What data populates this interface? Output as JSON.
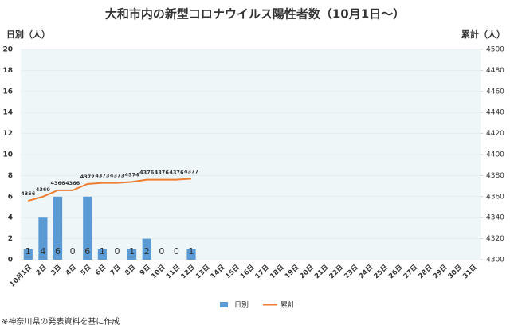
{
  "chart_data": {
    "type": "bar",
    "title": "大和市内の新型コロナウイルス陽性者数（10月1日～）",
    "y_label": "日別（人）",
    "y2_label": "累計（人）",
    "note": "※神奈川県の発表資料を基に作成",
    "categories": [
      "10月1日",
      "2日",
      "3日",
      "4日",
      "5日",
      "6日",
      "7日",
      "8日",
      "9日",
      "10日",
      "11日",
      "12日",
      "13日",
      "14日",
      "15日",
      "16日",
      "17日",
      "18日",
      "19日",
      "20日",
      "21日",
      "22日",
      "23日",
      "24日",
      "25日",
      "26日",
      "27日",
      "28日",
      "29日",
      "30日",
      "31日"
    ],
    "series": [
      {
        "name": "日別",
        "color": "#5b9bd5",
        "values": [
          1,
          4,
          6,
          0,
          6,
          1,
          0,
          1,
          2,
          0,
          0,
          1,
          null,
          null,
          null,
          null,
          null,
          null,
          null,
          null,
          null,
          null,
          null,
          null,
          null,
          null,
          null,
          null,
          null,
          null,
          null
        ]
      },
      {
        "name": "累計",
        "color": "#ed7d31",
        "type": "line",
        "axis": "y2",
        "values": [
          4356,
          4360,
          4366,
          4366,
          4372,
          4373,
          4373,
          4374,
          4376,
          4376,
          4376,
          4377,
          null,
          null,
          null,
          null,
          null,
          null,
          null,
          null,
          null,
          null,
          null,
          null,
          null,
          null,
          null,
          null,
          null,
          null,
          null
        ]
      }
    ],
    "ylim": [
      0,
      20
    ],
    "yticks": [
      0,
      2,
      4,
      6,
      8,
      10,
      12,
      14,
      16,
      18,
      20
    ],
    "y2lim": [
      4300,
      4500
    ],
    "y2ticks": [
      4300,
      4320,
      4340,
      4360,
      4380,
      4400,
      4420,
      4440,
      4460,
      4480,
      4500
    ],
    "grid": true,
    "legend": "bottom"
  }
}
